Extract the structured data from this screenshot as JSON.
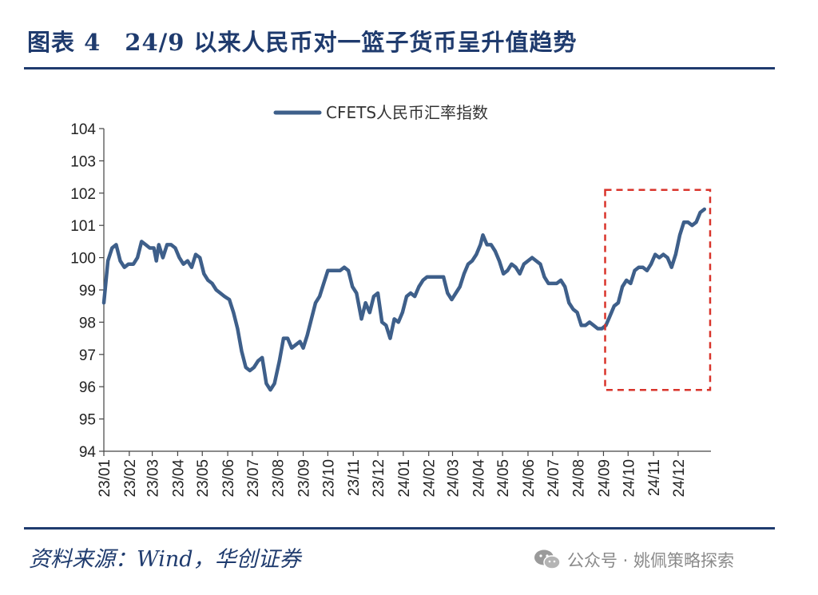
{
  "header": {
    "title": "图表 4　24/9 以来人民币对一篮子货币呈升值趋势"
  },
  "source": {
    "text": "资料来源：Wind，华创证券"
  },
  "watermark": {
    "icon": "wechat-icon",
    "text": "公众号 · 姚佩策略探索"
  },
  "chart_data": {
    "type": "line",
    "legend": {
      "position": "top-center"
    },
    "ylim": [
      94,
      104
    ],
    "yticks": [
      94,
      95,
      96,
      97,
      98,
      99,
      100,
      101,
      102,
      103,
      104
    ],
    "x_range": [
      "2023-01-01",
      "2025-01-10"
    ],
    "xticks": [
      "23/01",
      "23/02",
      "23/03",
      "23/04",
      "23/05",
      "23/06",
      "23/07",
      "23/08",
      "23/09",
      "23/10",
      "23/11",
      "23/12",
      "24/01",
      "24/02",
      "24/03",
      "24/04",
      "24/05",
      "24/06",
      "24/07",
      "24/08",
      "24/09",
      "24/10",
      "24/11",
      "24/12"
    ],
    "xtick_dates": [
      "2023-01-01",
      "2023-02-01",
      "2023-03-01",
      "2023-04-01",
      "2023-05-01",
      "2023-06-01",
      "2023-07-01",
      "2023-08-01",
      "2023-09-01",
      "2023-10-01",
      "2023-11-01",
      "2023-12-01",
      "2024-01-01",
      "2024-02-01",
      "2024-03-01",
      "2024-04-01",
      "2024-05-01",
      "2024-06-01",
      "2024-07-01",
      "2024-08-01",
      "2024-09-01",
      "2024-10-01",
      "2024-11-01",
      "2024-12-01"
    ],
    "grid": false,
    "series": [
      {
        "name": "CFETS人民币汇率指数",
        "color": "#3e5f8a",
        "points": [
          [
            "2023-01-01",
            98.6
          ],
          [
            "2023-01-06",
            99.9
          ],
          [
            "2023-01-11",
            100.3
          ],
          [
            "2023-01-16",
            100.4
          ],
          [
            "2023-01-21",
            99.9
          ],
          [
            "2023-01-26",
            99.7
          ],
          [
            "2023-01-31",
            99.8
          ],
          [
            "2023-02-06",
            99.8
          ],
          [
            "2023-02-11",
            100.0
          ],
          [
            "2023-02-16",
            100.5
          ],
          [
            "2023-02-21",
            100.4
          ],
          [
            "2023-02-26",
            100.3
          ],
          [
            "2023-03-03",
            100.3
          ],
          [
            "2023-03-06",
            99.9
          ],
          [
            "2023-03-09",
            100.4
          ],
          [
            "2023-03-14",
            100.0
          ],
          [
            "2023-03-19",
            100.4
          ],
          [
            "2023-03-24",
            100.4
          ],
          [
            "2023-03-29",
            100.3
          ],
          [
            "2023-04-03",
            100.0
          ],
          [
            "2023-04-08",
            99.8
          ],
          [
            "2023-04-13",
            99.9
          ],
          [
            "2023-04-18",
            99.7
          ],
          [
            "2023-04-23",
            100.1
          ],
          [
            "2023-04-28",
            100.0
          ],
          [
            "2023-05-03",
            99.5
          ],
          [
            "2023-05-08",
            99.3
          ],
          [
            "2023-05-13",
            99.2
          ],
          [
            "2023-05-18",
            99.0
          ],
          [
            "2023-05-23",
            98.9
          ],
          [
            "2023-05-28",
            98.8
          ],
          [
            "2023-06-03",
            98.7
          ],
          [
            "2023-06-08",
            98.3
          ],
          [
            "2023-06-13",
            97.8
          ],
          [
            "2023-06-18",
            97.1
          ],
          [
            "2023-06-23",
            96.6
          ],
          [
            "2023-06-28",
            96.5
          ],
          [
            "2023-07-03",
            96.6
          ],
          [
            "2023-07-08",
            96.8
          ],
          [
            "2023-07-13",
            96.9
          ],
          [
            "2023-07-18",
            96.1
          ],
          [
            "2023-07-23",
            95.9
          ],
          [
            "2023-07-28",
            96.1
          ],
          [
            "2023-08-03",
            96.8
          ],
          [
            "2023-08-08",
            97.5
          ],
          [
            "2023-08-13",
            97.5
          ],
          [
            "2023-08-18",
            97.2
          ],
          [
            "2023-08-23",
            97.3
          ],
          [
            "2023-08-28",
            97.4
          ],
          [
            "2023-09-01",
            97.2
          ],
          [
            "2023-09-06",
            97.6
          ],
          [
            "2023-09-11",
            98.1
          ],
          [
            "2023-09-16",
            98.6
          ],
          [
            "2023-09-21",
            98.8
          ],
          [
            "2023-09-26",
            99.2
          ],
          [
            "2023-10-01",
            99.6
          ],
          [
            "2023-10-06",
            99.6
          ],
          [
            "2023-10-11",
            99.6
          ],
          [
            "2023-10-16",
            99.6
          ],
          [
            "2023-10-21",
            99.7
          ],
          [
            "2023-10-26",
            99.6
          ],
          [
            "2023-10-31",
            99.1
          ],
          [
            "2023-11-05",
            98.9
          ],
          [
            "2023-11-08",
            98.5
          ],
          [
            "2023-11-11",
            98.1
          ],
          [
            "2023-11-16",
            98.6
          ],
          [
            "2023-11-21",
            98.3
          ],
          [
            "2023-11-26",
            98.8
          ],
          [
            "2023-12-01",
            98.9
          ],
          [
            "2023-12-06",
            98.0
          ],
          [
            "2023-12-11",
            97.9
          ],
          [
            "2023-12-16",
            97.5
          ],
          [
            "2023-12-21",
            98.1
          ],
          [
            "2023-12-26",
            98.0
          ],
          [
            "2023-12-31",
            98.3
          ],
          [
            "2024-01-05",
            98.8
          ],
          [
            "2024-01-10",
            98.9
          ],
          [
            "2024-01-15",
            98.8
          ],
          [
            "2024-01-20",
            99.1
          ],
          [
            "2024-01-25",
            99.3
          ],
          [
            "2024-01-30",
            99.4
          ],
          [
            "2024-02-04",
            99.4
          ],
          [
            "2024-02-09",
            99.4
          ],
          [
            "2024-02-14",
            99.4
          ],
          [
            "2024-02-19",
            99.4
          ],
          [
            "2024-02-24",
            98.9
          ],
          [
            "2024-02-29",
            98.7
          ],
          [
            "2024-03-05",
            98.9
          ],
          [
            "2024-03-10",
            99.1
          ],
          [
            "2024-03-15",
            99.5
          ],
          [
            "2024-03-20",
            99.8
          ],
          [
            "2024-03-25",
            99.9
          ],
          [
            "2024-03-30",
            100.1
          ],
          [
            "2024-04-04",
            100.4
          ],
          [
            "2024-04-07",
            100.7
          ],
          [
            "2024-04-12",
            100.4
          ],
          [
            "2024-04-17",
            100.4
          ],
          [
            "2024-04-22",
            100.2
          ],
          [
            "2024-04-27",
            99.9
          ],
          [
            "2024-05-02",
            99.5
          ],
          [
            "2024-05-07",
            99.6
          ],
          [
            "2024-05-12",
            99.8
          ],
          [
            "2024-05-17",
            99.7
          ],
          [
            "2024-05-22",
            99.5
          ],
          [
            "2024-05-27",
            99.8
          ],
          [
            "2024-06-01",
            99.9
          ],
          [
            "2024-06-06",
            100.0
          ],
          [
            "2024-06-11",
            99.9
          ],
          [
            "2024-06-16",
            99.8
          ],
          [
            "2024-06-21",
            99.4
          ],
          [
            "2024-06-26",
            99.2
          ],
          [
            "2024-07-01",
            99.2
          ],
          [
            "2024-07-06",
            99.2
          ],
          [
            "2024-07-11",
            99.3
          ],
          [
            "2024-07-16",
            99.1
          ],
          [
            "2024-07-21",
            98.6
          ],
          [
            "2024-07-26",
            98.4
          ],
          [
            "2024-07-31",
            98.3
          ],
          [
            "2024-08-05",
            97.9
          ],
          [
            "2024-08-10",
            97.9
          ],
          [
            "2024-08-15",
            98.0
          ],
          [
            "2024-08-20",
            97.9
          ],
          [
            "2024-08-25",
            97.8
          ],
          [
            "2024-08-30",
            97.8
          ],
          [
            "2024-09-04",
            97.9
          ],
          [
            "2024-09-09",
            98.2
          ],
          [
            "2024-09-14",
            98.5
          ],
          [
            "2024-09-19",
            98.6
          ],
          [
            "2024-09-24",
            99.1
          ],
          [
            "2024-09-29",
            99.3
          ],
          [
            "2024-10-04",
            99.2
          ],
          [
            "2024-10-09",
            99.6
          ],
          [
            "2024-10-14",
            99.7
          ],
          [
            "2024-10-19",
            99.7
          ],
          [
            "2024-10-24",
            99.6
          ],
          [
            "2024-10-29",
            99.8
          ],
          [
            "2024-11-03",
            100.1
          ],
          [
            "2024-11-08",
            100.0
          ],
          [
            "2024-11-13",
            100.1
          ],
          [
            "2024-11-18",
            100.0
          ],
          [
            "2024-11-23",
            99.7
          ],
          [
            "2024-11-28",
            100.1
          ],
          [
            "2024-12-03",
            100.7
          ],
          [
            "2024-12-08",
            101.1
          ],
          [
            "2024-12-13",
            101.1
          ],
          [
            "2024-12-18",
            101.0
          ],
          [
            "2024-12-23",
            101.1
          ],
          [
            "2024-12-28",
            101.4
          ],
          [
            "2025-01-02",
            101.5
          ]
        ]
      }
    ],
    "annotations": [
      {
        "type": "dashed-rectangle",
        "color": "#d9342b",
        "x_from": "2024-09-03",
        "x_to": "2025-01-09",
        "y_from": 95.9,
        "y_to": 102.1
      }
    ]
  }
}
